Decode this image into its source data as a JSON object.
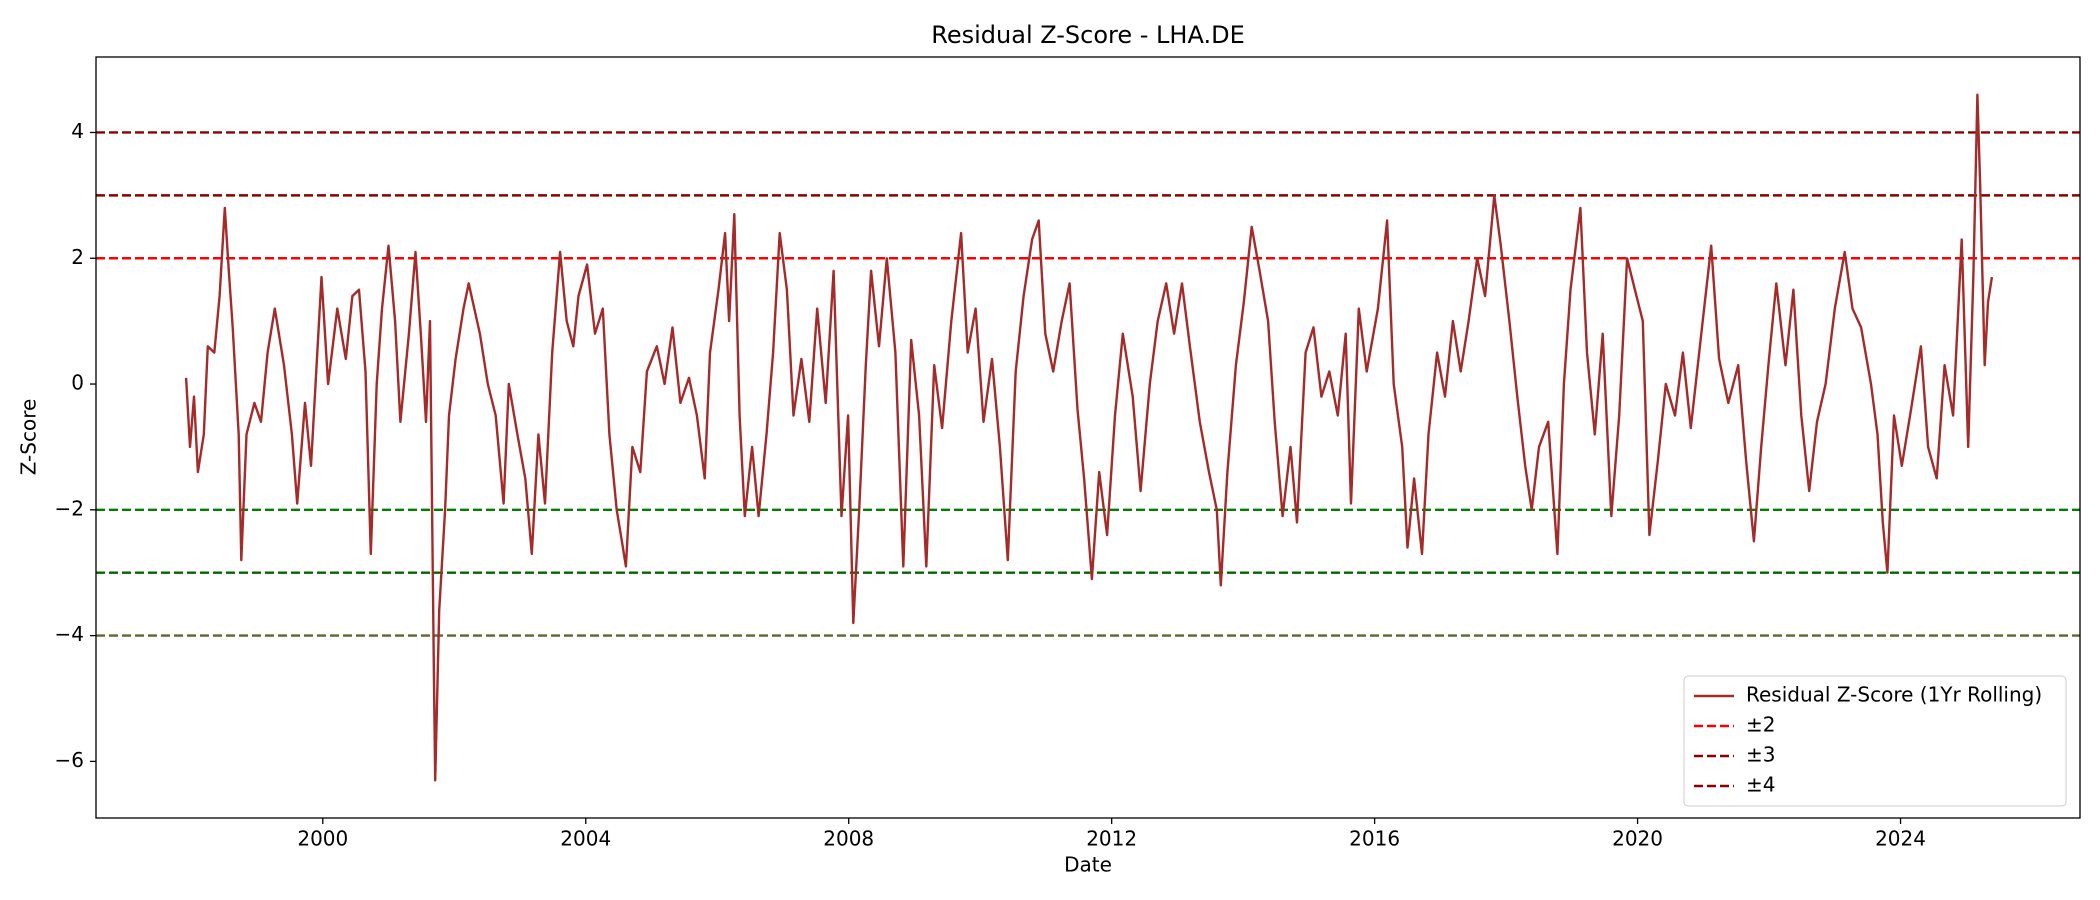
{
  "chart_data": {
    "type": "line",
    "title": "Residual Z-Score - LHA.DE",
    "x_label": "Date",
    "y_label": "Z-Score",
    "xlim": [
      1996.55,
      2026.73
    ],
    "xticks": [
      2000,
      2004,
      2008,
      2012,
      2016,
      2020,
      2024
    ],
    "ylim": [
      -6.9,
      5.2
    ],
    "yticks": [
      {
        "value": -6,
        "label": "−6"
      },
      {
        "value": -4,
        "label": "−4"
      },
      {
        "value": -2,
        "label": "−2"
      },
      0,
      2,
      4
    ],
    "legend": "lower right",
    "x": [
      1997.92,
      1997.98,
      1998.04,
      1998.1,
      1998.19,
      1998.25,
      1998.35,
      1998.43,
      1998.51,
      1998.57,
      1998.63,
      1998.72,
      1998.76,
      1998.84,
      1998.96,
      1999.06,
      1999.16,
      1999.27,
      1999.41,
      1999.53,
      1999.61,
      1999.73,
      1999.82,
      1999.98,
      2000.08,
      2000.22,
      2000.35,
      2000.45,
      2000.55,
      2000.65,
      2000.73,
      2000.82,
      2000.9,
      2001.0,
      2001.1,
      2001.18,
      2001.31,
      2001.41,
      2001.49,
      2001.57,
      2001.63,
      2001.69,
      2001.71,
      2001.77,
      2001.86,
      2001.92,
      2002.02,
      2002.14,
      2002.22,
      2002.39,
      2002.51,
      2002.63,
      2002.75,
      2002.83,
      2002.96,
      2003.08,
      2003.18,
      2003.28,
      2003.38,
      2003.49,
      2003.61,
      2003.71,
      2003.81,
      2003.89,
      2004.02,
      2004.14,
      2004.26,
      2004.36,
      2004.47,
      2004.55,
      2004.61,
      2004.71,
      2004.83,
      2004.93,
      2005.08,
      2005.2,
      2005.32,
      2005.44,
      2005.57,
      2005.69,
      2005.81,
      2005.89,
      2006.02,
      2006.12,
      2006.18,
      2006.26,
      2006.34,
      2006.42,
      2006.53,
      2006.63,
      2006.75,
      2006.85,
      2006.95,
      2007.06,
      2007.16,
      2007.28,
      2007.4,
      2007.52,
      2007.65,
      2007.77,
      2007.89,
      2007.99,
      2008.07,
      2008.16,
      2008.26,
      2008.34,
      2008.46,
      2008.58,
      2008.71,
      2008.83,
      2008.95,
      2009.07,
      2009.18,
      2009.3,
      2009.42,
      2009.56,
      2009.71,
      2009.81,
      2009.93,
      2010.05,
      2010.18,
      2010.3,
      2010.42,
      2010.54,
      2010.66,
      2010.79,
      2010.89,
      2010.99,
      2011.11,
      2011.24,
      2011.36,
      2011.48,
      2011.58,
      2011.7,
      2011.81,
      2011.93,
      2012.05,
      2012.17,
      2012.32,
      2012.44,
      2012.58,
      2012.7,
      2012.83,
      2012.95,
      2013.07,
      2013.19,
      2013.34,
      2013.48,
      2013.6,
      2013.66,
      2013.76,
      2013.89,
      2014.01,
      2014.13,
      2014.25,
      2014.38,
      2014.48,
      2014.6,
      2014.72,
      2014.82,
      2014.95,
      2015.07,
      2015.19,
      2015.31,
      2015.44,
      2015.56,
      2015.64,
      2015.76,
      2015.88,
      2016.05,
      2016.19,
      2016.29,
      2016.42,
      2016.5,
      2016.6,
      2016.72,
      2016.82,
      2016.95,
      2017.07,
      2017.19,
      2017.31,
      2017.43,
      2017.56,
      2017.68,
      2017.82,
      2017.92,
      2018.05,
      2018.17,
      2018.29,
      2018.39,
      2018.5,
      2018.64,
      2018.78,
      2018.88,
      2018.98,
      2019.13,
      2019.23,
      2019.35,
      2019.47,
      2019.6,
      2019.72,
      2019.84,
      2019.96,
      2020.08,
      2020.18,
      2020.31,
      2020.43,
      2020.57,
      2020.69,
      2020.81,
      2020.98,
      2021.12,
      2021.24,
      2021.38,
      2021.53,
      2021.65,
      2021.77,
      2021.88,
      2021.99,
      2022.11,
      2022.25,
      2022.37,
      2022.49,
      2022.61,
      2022.73,
      2022.86,
      2023.0,
      2023.15,
      2023.27,
      2023.4,
      2023.55,
      2023.65,
      2023.73,
      2023.8,
      2023.9,
      2024.02,
      2024.16,
      2024.31,
      2024.42,
      2024.55,
      2024.67,
      2024.8,
      2024.93,
      2025.03,
      2025.11,
      2025.17,
      2025.21,
      2025.28,
      2025.33,
      2025.39
    ],
    "series": [
      {
        "name": "Residual Z-Score (1Yr Rolling)",
        "color": "#a52a2a",
        "values": [
          0.1,
          -1.0,
          -0.2,
          -1.4,
          -0.8,
          0.6,
          0.5,
          1.4,
          2.8,
          1.8,
          0.9,
          -0.8,
          -2.8,
          -0.8,
          -0.3,
          -0.6,
          0.5,
          1.2,
          0.3,
          -0.8,
          -1.9,
          -0.3,
          -1.3,
          1.7,
          0.0,
          1.2,
          0.4,
          1.4,
          1.5,
          0.2,
          -2.7,
          0.0,
          1.2,
          2.2,
          1.0,
          -0.6,
          0.8,
          2.1,
          0.8,
          -0.6,
          1.0,
          -4.6,
          -6.3,
          -3.6,
          -2.0,
          -0.5,
          0.4,
          1.2,
          1.6,
          0.8,
          0.0,
          -0.5,
          -1.9,
          0.0,
          -0.8,
          -1.5,
          -2.7,
          -0.8,
          -1.9,
          0.5,
          2.1,
          1.0,
          0.6,
          1.4,
          1.9,
          0.8,
          1.2,
          -0.8,
          -2.0,
          -2.5,
          -2.9,
          -1.0,
          -1.4,
          0.2,
          0.6,
          0.0,
          0.9,
          -0.3,
          0.1,
          -0.5,
          -1.5,
          0.5,
          1.5,
          2.4,
          1.0,
          2.7,
          -0.5,
          -2.1,
          -1.0,
          -2.1,
          -0.8,
          0.5,
          2.4,
          1.5,
          -0.5,
          0.4,
          -0.6,
          1.2,
          -0.3,
          1.8,
          -2.1,
          -0.5,
          -3.8,
          -2.0,
          0.3,
          1.8,
          0.6,
          2.0,
          0.5,
          -2.9,
          0.7,
          -0.5,
          -2.9,
          0.3,
          -0.7,
          1.0,
          2.4,
          0.5,
          1.2,
          -0.6,
          0.4,
          -1.0,
          -2.8,
          0.2,
          1.4,
          2.3,
          2.6,
          0.8,
          0.2,
          1.0,
          1.6,
          -0.4,
          -1.5,
          -3.1,
          -1.4,
          -2.4,
          -0.5,
          0.8,
          -0.2,
          -1.7,
          0.0,
          1.0,
          1.6,
          0.8,
          1.6,
          0.6,
          -0.6,
          -1.4,
          -2.0,
          -3.2,
          -1.4,
          0.3,
          1.3,
          2.5,
          1.8,
          1.0,
          -0.6,
          -2.1,
          -1.0,
          -2.2,
          0.5,
          0.9,
          -0.2,
          0.2,
          -0.5,
          0.8,
          -1.9,
          1.2,
          0.2,
          1.2,
          2.6,
          0.0,
          -1.0,
          -2.6,
          -1.5,
          -2.7,
          -0.8,
          0.5,
          -0.2,
          1.0,
          0.2,
          1.0,
          2.0,
          1.4,
          3.0,
          2.2,
          1.0,
          -0.2,
          -1.3,
          -2.0,
          -1.0,
          -0.6,
          -2.7,
          0.0,
          1.5,
          2.8,
          0.5,
          -0.8,
          0.8,
          -2.1,
          -0.5,
          2.0,
          1.5,
          1.0,
          -2.4,
          -1.2,
          0.0,
          -0.5,
          0.5,
          -0.7,
          0.9,
          2.2,
          0.4,
          -0.3,
          0.3,
          -1.2,
          -2.5,
          -1.0,
          0.3,
          1.6,
          0.3,
          1.5,
          -0.5,
          -1.7,
          -0.6,
          0.0,
          1.2,
          2.1,
          1.2,
          0.9,
          0.0,
          -0.8,
          -2.2,
          -3.0,
          -0.5,
          -1.3,
          -0.4,
          0.6,
          -1.0,
          -1.5,
          0.3,
          -0.5,
          2.3,
          -1.0,
          1.8,
          4.6,
          3.2,
          0.3,
          1.3,
          1.7
        ]
      }
    ],
    "thresholds": [
      {
        "name": "±2",
        "values": [
          2,
          -2
        ],
        "colors": [
          "red",
          "green"
        ]
      },
      {
        "name": "±3",
        "values": [
          3,
          -3
        ],
        "colors": [
          "darkred",
          "darkgreen"
        ]
      },
      {
        "name": "±4",
        "values": [
          4,
          -4
        ],
        "colors": [
          "darkred",
          "darkolivegreen"
        ]
      }
    ]
  }
}
